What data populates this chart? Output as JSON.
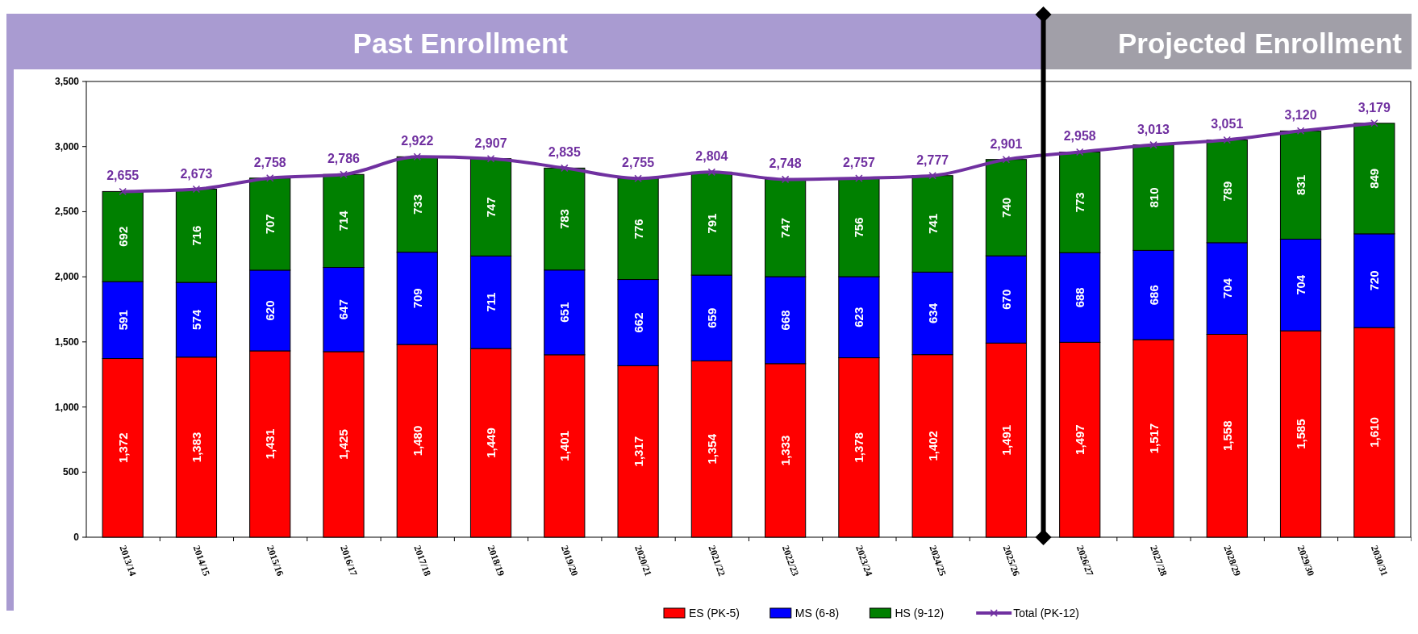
{
  "chart_data": {
    "type": "bar",
    "stacked": true,
    "categories": [
      "2013/14",
      "2014/15",
      "2015/16",
      "2016/17",
      "2017/18",
      "2018/19",
      "2019/20",
      "2020/21",
      "2021/22",
      "2022/23",
      "2023/24",
      "2024/25",
      "2025/26",
      "2026/27",
      "2027/28",
      "2028/29",
      "2029/30",
      "2030/31"
    ],
    "series": [
      {
        "name": "ES (PK-5)",
        "color": "#ff0000",
        "values": [
          1372,
          1383,
          1431,
          1425,
          1480,
          1449,
          1401,
          1317,
          1354,
          1333,
          1378,
          1402,
          1491,
          1497,
          1517,
          1558,
          1585,
          1610
        ],
        "value_labels": [
          "1,372",
          "1,383",
          "1,431",
          "1,425",
          "1,480",
          "1,449",
          "1,401",
          "1,317",
          "1,354",
          "1,333",
          "1,378",
          "1,402",
          "1,491",
          "1,497",
          "1,517",
          "1,558",
          "1,585",
          "1,610"
        ]
      },
      {
        "name": "MS (6-8)",
        "color": "#0000ff",
        "values": [
          591,
          574,
          620,
          647,
          709,
          711,
          651,
          662,
          659,
          668,
          623,
          634,
          670,
          688,
          686,
          704,
          704,
          720
        ],
        "value_labels": [
          "591",
          "574",
          "620",
          "647",
          "709",
          "711",
          "651",
          "662",
          "659",
          "668",
          "623",
          "634",
          "670",
          "688",
          "686",
          "704",
          "704",
          "720"
        ]
      },
      {
        "name": "HS (9-12)",
        "color": "#008000",
        "values": [
          692,
          716,
          707,
          714,
          733,
          747,
          783,
          776,
          791,
          747,
          756,
          741,
          740,
          773,
          810,
          789,
          831,
          849
        ],
        "value_labels": [
          "692",
          "716",
          "707",
          "714",
          "733",
          "747",
          "783",
          "776",
          "791",
          "747",
          "756",
          "741",
          "740",
          "773",
          "810",
          "789",
          "831",
          "849"
        ]
      },
      {
        "name": "Total (PK-12)",
        "type": "line",
        "color": "#7030a0",
        "marker": "cross",
        "values": [
          2655,
          2673,
          2758,
          2786,
          2922,
          2907,
          2835,
          2755,
          2804,
          2748,
          2757,
          2777,
          2901,
          2958,
          3013,
          3051,
          3120,
          3179
        ],
        "value_labels": [
          "2,655",
          "2,673",
          "2,758",
          "2,786",
          "2,922",
          "2,907",
          "2,835",
          "2,755",
          "2,804",
          "2,748",
          "2,757",
          "2,777",
          "2,901",
          "2,958",
          "3,013",
          "3,051",
          "3,120",
          "3,179"
        ]
      }
    ],
    "ylim": [
      0,
      3500
    ],
    "yticks": [
      0,
      500,
      {
        "value": 1000,
        "label": "1,000"
      },
      {
        "value": 1500,
        "label": "1,500"
      },
      {
        "value": 2000,
        "label": "2,000"
      },
      {
        "value": 2500,
        "label": "2,500"
      },
      {
        "value": 3000,
        "label": "3,000"
      },
      {
        "value": 3500,
        "label": "3,500"
      }
    ],
    "annotations": [
      "Past Enrollment",
      "Projected Enrollment"
    ],
    "grid": false,
    "legend": "bottom"
  }
}
